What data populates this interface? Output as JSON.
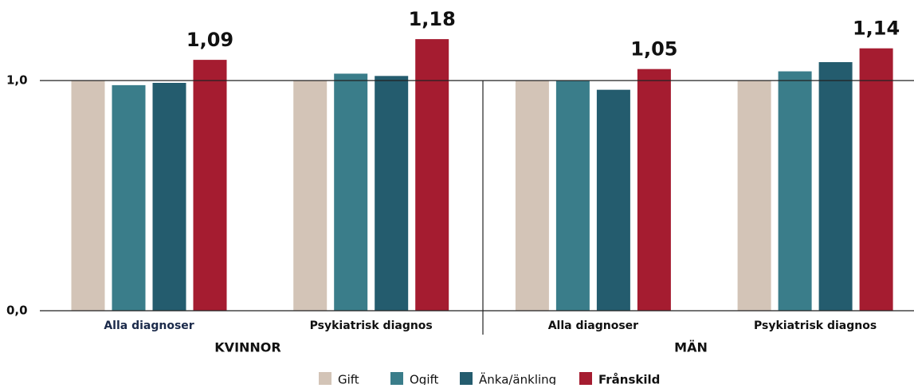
{
  "chart_data": {
    "type": "bar",
    "categories": [
      "Alla diagnoser",
      "Psykiatrisk diagnos",
      "Alla diagnoser",
      "Psykiatrisk diagnos"
    ],
    "group_labels": [
      "KVINNOR",
      "MÄN"
    ],
    "series": [
      {
        "name": "Gift",
        "color": "#d3c4b7",
        "values": [
          1.0,
          1.0,
          1.0,
          1.0
        ]
      },
      {
        "name": "Ogift",
        "color": "#3a7d8a",
        "values": [
          0.98,
          1.03,
          1.0,
          1.04
        ]
      },
      {
        "name": "Änka/änkling",
        "color": "#245c6e",
        "values": [
          0.99,
          1.02,
          0.96,
          1.08
        ]
      },
      {
        "name": "Frånskild",
        "color": "#a51c30",
        "values": [
          1.09,
          1.18,
          1.05,
          1.14
        ],
        "value_labels": [
          "1,09",
          "1,18",
          "1,05",
          "1,14"
        ]
      }
    ],
    "ylim": [
      0,
      1.35
    ],
    "yticks": [
      {
        "value": 0,
        "label": "0,0"
      },
      {
        "value": 1,
        "label": "1,0"
      }
    ]
  }
}
